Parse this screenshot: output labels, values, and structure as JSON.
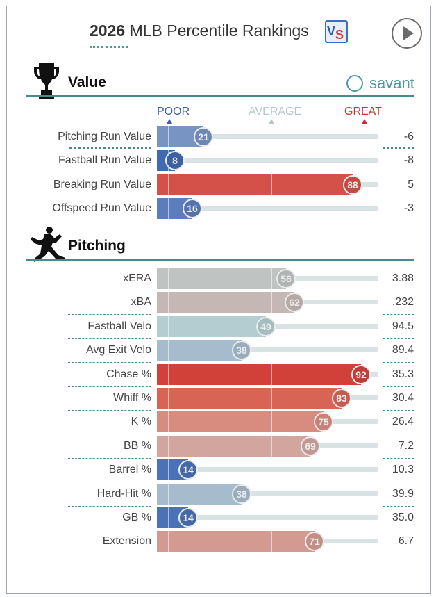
{
  "header": {
    "year": "2026",
    "title_rest": "MLB Percentile Rankings",
    "vs_logo_text": "VS"
  },
  "icons": {
    "trophy": "trophy-icon",
    "pitcher": "pitcher-silhouette-icon",
    "play": "play-icon",
    "baseball": "baseball-icon"
  },
  "colors": {
    "accent_teal": "#4a8a8e",
    "poor_blue": "#3a5ea8",
    "average_gray": "#b5c7c8",
    "great_red": "#c9302c"
  },
  "value_section": {
    "title": "Value",
    "savant_label": "savant"
  },
  "scale": {
    "poor": "POOR",
    "average": "AVERAGE",
    "great": "GREAT"
  },
  "value_rows": [
    {
      "label": "Pitching Run Value",
      "percentile": 21,
      "value": "-6",
      "color": "#7894c3"
    },
    {
      "label": "Fastball Run Value",
      "percentile": 8,
      "value": "-8",
      "color": "#4169b0"
    },
    {
      "label": "Breaking Run Value",
      "percentile": 88,
      "value": "5",
      "color": "#d4514a"
    },
    {
      "label": "Offspeed Run Value",
      "percentile": 16,
      "value": "-3",
      "color": "#5b7dbc"
    }
  ],
  "pitching_section": {
    "title": "Pitching"
  },
  "pitching_rows": [
    {
      "label": "xERA",
      "percentile": 58,
      "value": "3.88",
      "color": "#bfc4c2"
    },
    {
      "label": "xBA",
      "percentile": 62,
      "value": ".232",
      "color": "#c5b7b3"
    },
    {
      "label": "Fastball Velo",
      "percentile": 49,
      "value": "94.5",
      "color": "#b3cdd0"
    },
    {
      "label": "Avg Exit Velo",
      "percentile": 38,
      "value": "89.4",
      "color": "#a6bccd"
    },
    {
      "label": "Chase %",
      "percentile": 92,
      "value": "35.3",
      "color": "#d1413a"
    },
    {
      "label": "Whiff %",
      "percentile": 83,
      "value": "30.4",
      "color": "#d86456"
    },
    {
      "label": "K %",
      "percentile": 75,
      "value": "26.4",
      "color": "#d88c80"
    },
    {
      "label": "BB %",
      "percentile": 69,
      "value": "7.2",
      "color": "#d2a59f"
    },
    {
      "label": "Barrel %",
      "percentile": 14,
      "value": "10.3",
      "color": "#4b72b6"
    },
    {
      "label": "Hard-Hit %",
      "percentile": 38,
      "value": "39.9",
      "color": "#a6bccd"
    },
    {
      "label": "GB %",
      "percentile": 14,
      "value": "35.0",
      "color": "#4b72b6"
    },
    {
      "label": "Extension",
      "percentile": 71,
      "value": "6.7",
      "color": "#d39a91"
    }
  ]
}
